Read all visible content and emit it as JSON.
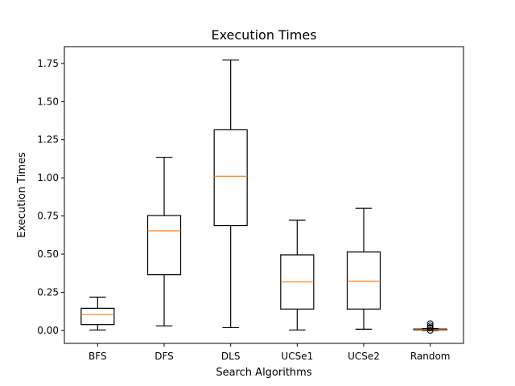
{
  "chart_data": {
    "type": "boxplot",
    "title": "Execution Times",
    "xlabel": "Search Algorithms",
    "ylabel": "Execution Times",
    "ylim": [
      -0.085,
      1.86
    ],
    "yticks": [
      0.0,
      0.25,
      0.5,
      0.75,
      1.0,
      1.25,
      1.5,
      1.75
    ],
    "ytick_labels": [
      "0.00",
      "0.25",
      "0.50",
      "0.75",
      "1.00",
      "1.25",
      "1.50",
      "1.75"
    ],
    "categories": [
      "BFS",
      "DFS",
      "DLS",
      "UCSe1",
      "UCSe2",
      "Random"
    ],
    "boxes": [
      {
        "category": "BFS",
        "whisker_low": 0.003,
        "q1": 0.038,
        "median": 0.103,
        "q3": 0.145,
        "whisker_high": 0.218,
        "outliers": []
      },
      {
        "category": "DFS",
        "whisker_low": 0.03,
        "q1": 0.365,
        "median": 0.653,
        "q3": 0.753,
        "whisker_high": 1.135,
        "outliers": []
      },
      {
        "category": "DLS",
        "whisker_low": 0.018,
        "q1": 0.687,
        "median": 1.01,
        "q3": 1.315,
        "whisker_high": 1.772,
        "outliers": []
      },
      {
        "category": "UCSe1",
        "whisker_low": 0.003,
        "q1": 0.14,
        "median": 0.318,
        "q3": 0.495,
        "whisker_high": 0.722,
        "outliers": []
      },
      {
        "category": "UCSe2",
        "whisker_low": 0.008,
        "q1": 0.14,
        "median": 0.323,
        "q3": 0.515,
        "whisker_high": 0.8,
        "outliers": []
      },
      {
        "category": "Random",
        "whisker_low": 0.0,
        "q1": 0.003,
        "median": 0.005,
        "q3": 0.009,
        "whisker_high": 0.012,
        "outliers": [
          0.015,
          0.02,
          0.03,
          0.045,
          0.0
        ]
      }
    ],
    "colors": {
      "box": "#000000",
      "median": "#ff7f0e"
    },
    "grid": false,
    "legend": "none"
  }
}
